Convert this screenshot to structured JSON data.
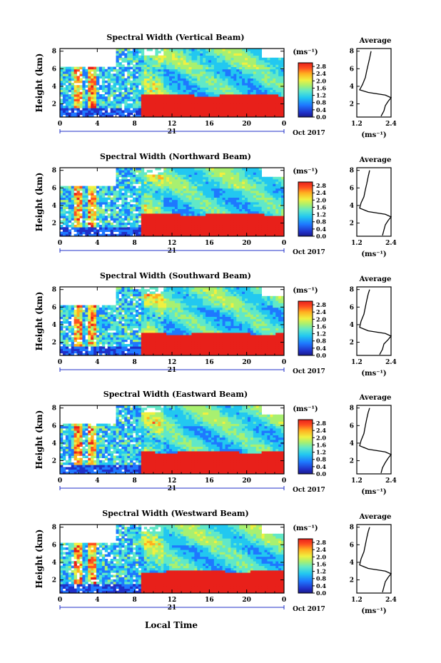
{
  "chart_data": {
    "type": "heatmap",
    "xlabel": "Local Time",
    "ylabel": "Height (km)",
    "date_label": "Oct 2017",
    "day_label": "21",
    "x_ticks": [
      "0",
      "4",
      "8",
      "12",
      "16",
      "20",
      "0"
    ],
    "y_ticks": [
      "2",
      "4",
      "6",
      "8"
    ],
    "xlim": [
      0,
      24
    ],
    "ylim": [
      0.5,
      8.3
    ],
    "colorbar": {
      "unit": "(ms⁻¹)",
      "ticks": [
        "0.0",
        "0.4",
        "0.8",
        "1.2",
        "1.6",
        "2.0",
        "2.4",
        "2.8"
      ],
      "range": [
        0,
        3.0
      ]
    },
    "average": {
      "title": "Average",
      "unit": "(ms⁻¹)",
      "x_ticks": [
        "1.2",
        "2.4"
      ],
      "xlim": [
        1.2,
        2.4
      ],
      "y_ticks": [
        "2",
        "4",
        "6",
        "8"
      ],
      "ylim": [
        0.5,
        8.3
      ]
    },
    "panels": [
      {
        "title": "Spectral Width (Vertical Beam)",
        "avg_profile": [
          [
            2.05,
            0.6
          ],
          [
            2.15,
            1.2
          ],
          [
            2.2,
            1.8
          ],
          [
            2.3,
            2.3
          ],
          [
            2.4,
            2.7
          ],
          [
            2.2,
            3.0
          ],
          [
            1.6,
            3.3
          ],
          [
            1.3,
            3.6
          ],
          [
            1.4,
            4.2
          ],
          [
            1.5,
            5.0
          ],
          [
            1.55,
            5.8
          ],
          [
            1.6,
            6.5
          ],
          [
            1.65,
            7.2
          ],
          [
            1.7,
            8.0
          ]
        ]
      },
      {
        "title": "Spectral Width (Northward Beam)",
        "avg_profile": [
          [
            2.1,
            0.6
          ],
          [
            2.15,
            1.2
          ],
          [
            2.2,
            1.8
          ],
          [
            2.3,
            2.3
          ],
          [
            2.4,
            2.7
          ],
          [
            2.2,
            3.0
          ],
          [
            1.6,
            3.3
          ],
          [
            1.3,
            3.7
          ],
          [
            1.35,
            4.3
          ],
          [
            1.45,
            5.0
          ],
          [
            1.5,
            5.8
          ],
          [
            1.55,
            6.5
          ],
          [
            1.6,
            7.3
          ],
          [
            1.65,
            8.0
          ]
        ]
      },
      {
        "title": "Spectral Width (Southward Beam)",
        "avg_profile": [
          [
            2.0,
            0.6
          ],
          [
            2.1,
            1.2
          ],
          [
            2.15,
            1.8
          ],
          [
            2.3,
            2.3
          ],
          [
            2.4,
            2.7
          ],
          [
            2.2,
            3.0
          ],
          [
            1.6,
            3.3
          ],
          [
            1.3,
            3.7
          ],
          [
            1.35,
            4.4
          ],
          [
            1.45,
            5.2
          ],
          [
            1.5,
            6.0
          ],
          [
            1.55,
            6.8
          ],
          [
            1.6,
            7.5
          ],
          [
            1.65,
            8.0
          ]
        ]
      },
      {
        "title": "Spectral Width (Eastward Beam)",
        "avg_profile": [
          [
            2.05,
            0.6
          ],
          [
            2.1,
            1.2
          ],
          [
            2.2,
            1.8
          ],
          [
            2.3,
            2.3
          ],
          [
            2.4,
            2.7
          ],
          [
            2.2,
            3.0
          ],
          [
            1.6,
            3.3
          ],
          [
            1.3,
            3.7
          ],
          [
            1.35,
            4.3
          ],
          [
            1.45,
            5.1
          ],
          [
            1.5,
            6.0
          ],
          [
            1.55,
            6.8
          ],
          [
            1.6,
            7.5
          ],
          [
            1.65,
            8.0
          ]
        ]
      },
      {
        "title": "Spectral Width (Westward Beam)",
        "avg_profile": [
          [
            2.1,
            0.6
          ],
          [
            2.15,
            1.2
          ],
          [
            2.2,
            1.8
          ],
          [
            2.3,
            2.3
          ],
          [
            2.4,
            2.7
          ],
          [
            2.2,
            3.0
          ],
          [
            1.6,
            3.3
          ],
          [
            1.3,
            3.7
          ],
          [
            1.35,
            4.4
          ],
          [
            1.45,
            5.2
          ],
          [
            1.5,
            6.0
          ],
          [
            1.55,
            6.8
          ],
          [
            1.6,
            7.5
          ],
          [
            1.65,
            8.0
          ]
        ]
      }
    ],
    "colors": {
      "scale": [
        "#1a1a8a",
        "#2030c8",
        "#1e78ff",
        "#22c8f0",
        "#60e8c8",
        "#a8f070",
        "#f0f040",
        "#ffb020",
        "#ff5020",
        "#e8201a"
      ]
    }
  }
}
